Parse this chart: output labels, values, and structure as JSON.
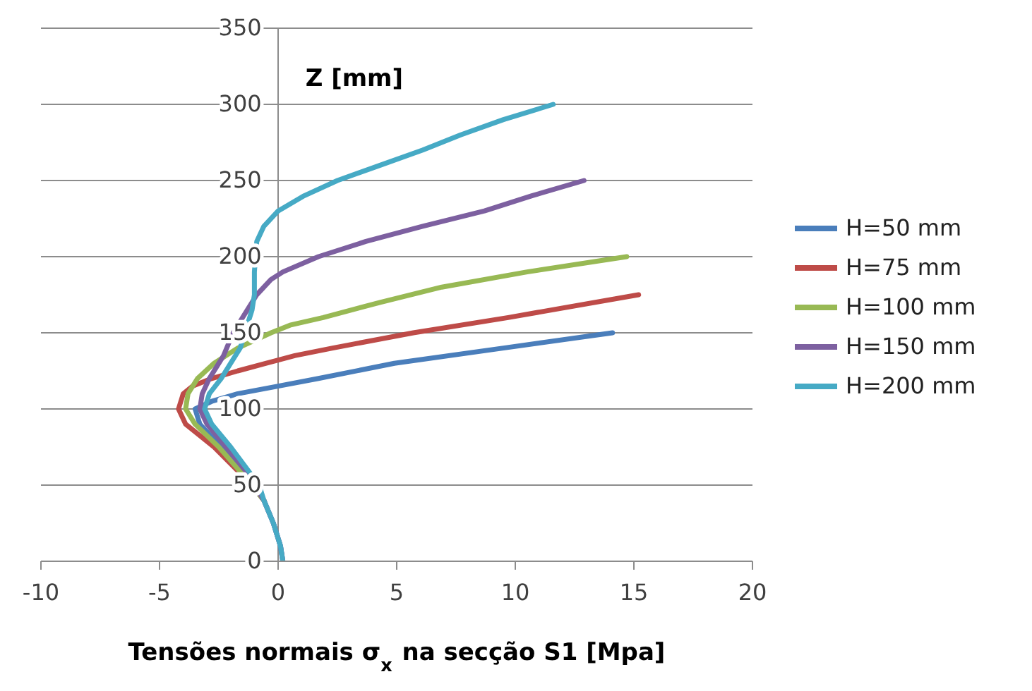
{
  "chart_data": {
    "type": "line",
    "xlabel": "Tensões normais σ$_{x}$ na secção S1 [Mpa]",
    "ylabel": "Z [mm]",
    "xlim": [
      -10,
      20
    ],
    "xticks": [
      -10,
      -5,
      0,
      5,
      10,
      15,
      20
    ],
    "ylim": [
      0,
      350
    ],
    "yticks": [
      0,
      50,
      100,
      150,
      200,
      250,
      300,
      350
    ],
    "grid": "y",
    "legend": "right",
    "marker": "none",
    "line_style": "solid",
    "series": [
      {
        "name": "H=50 mm",
        "color": "#4a7ebb",
        "x": [
          0.2,
          0.1,
          -0.2,
          -0.6,
          -1.1,
          -2.4,
          -3.3,
          -3.5,
          -2.8,
          -1.7,
          0,
          1.7,
          4.9,
          9.5,
          14.1
        ],
        "values": [
          0,
          10,
          25,
          40,
          50,
          75,
          90,
          100,
          105,
          110,
          115,
          120,
          130,
          140,
          150
        ]
      },
      {
        "name": "H=75 mm",
        "color": "#be4b48",
        "x": [
          -0.6,
          -1.1,
          -2.7,
          -3.9,
          -4.2,
          -4.0,
          -3.6,
          -2.8,
          -1.7,
          -0.5,
          0.7,
          2.3,
          5.7,
          9.7,
          15.2
        ],
        "values": [
          40,
          50,
          75,
          90,
          100,
          110,
          115,
          120,
          125,
          130,
          135,
          140,
          150,
          160,
          175
        ]
      },
      {
        "name": "H=100 mm",
        "color": "#98b954",
        "x": [
          -0.6,
          -1.1,
          -2.5,
          -3.5,
          -3.9,
          -3.8,
          -3.4,
          -2.7,
          -1.7,
          -0.3,
          0.5,
          1.9,
          4.3,
          6.9,
          10.5,
          14.7
        ],
        "values": [
          40,
          50,
          75,
          90,
          100,
          110,
          120,
          130,
          140,
          150,
          155,
          160,
          170,
          180,
          190,
          200
        ]
      },
      {
        "name": "H=150 mm",
        "color": "#7d60a0",
        "x": [
          0.2,
          0.1,
          -0.2,
          -0.6,
          -1.4,
          -2.2,
          -3.0,
          -3.3,
          -3.2,
          -2.9,
          -2.3,
          -1.9,
          -1.3,
          -0.9,
          -0.3,
          0.2,
          1.7,
          3.7,
          6.1,
          8.7,
          10.7,
          12.9
        ],
        "values": [
          0,
          10,
          25,
          40,
          60,
          75,
          90,
          100,
          110,
          120,
          135,
          150,
          165,
          175,
          185,
          190,
          200,
          210,
          220,
          230,
          240,
          250
        ]
      },
      {
        "name": "H=200 mm",
        "color": "#46aac5",
        "x": [
          0.2,
          0.1,
          -0.2,
          -0.6,
          -0.8,
          -2.0,
          -2.8,
          -3.1,
          -2.9,
          -2.4,
          -2.0,
          -1.6,
          -1.4,
          -1.1,
          -1.0,
          -1.0,
          -0.9,
          -0.6,
          0,
          1.1,
          2.5,
          4.3,
          6.1,
          7.7,
          9.5,
          11.6
        ],
        "values": [
          0,
          10,
          25,
          40,
          50,
          75,
          90,
          100,
          110,
          120,
          130,
          140,
          150,
          165,
          175,
          190,
          210,
          220,
          230,
          240,
          250,
          260,
          270,
          280,
          290,
          300
        ]
      }
    ]
  }
}
